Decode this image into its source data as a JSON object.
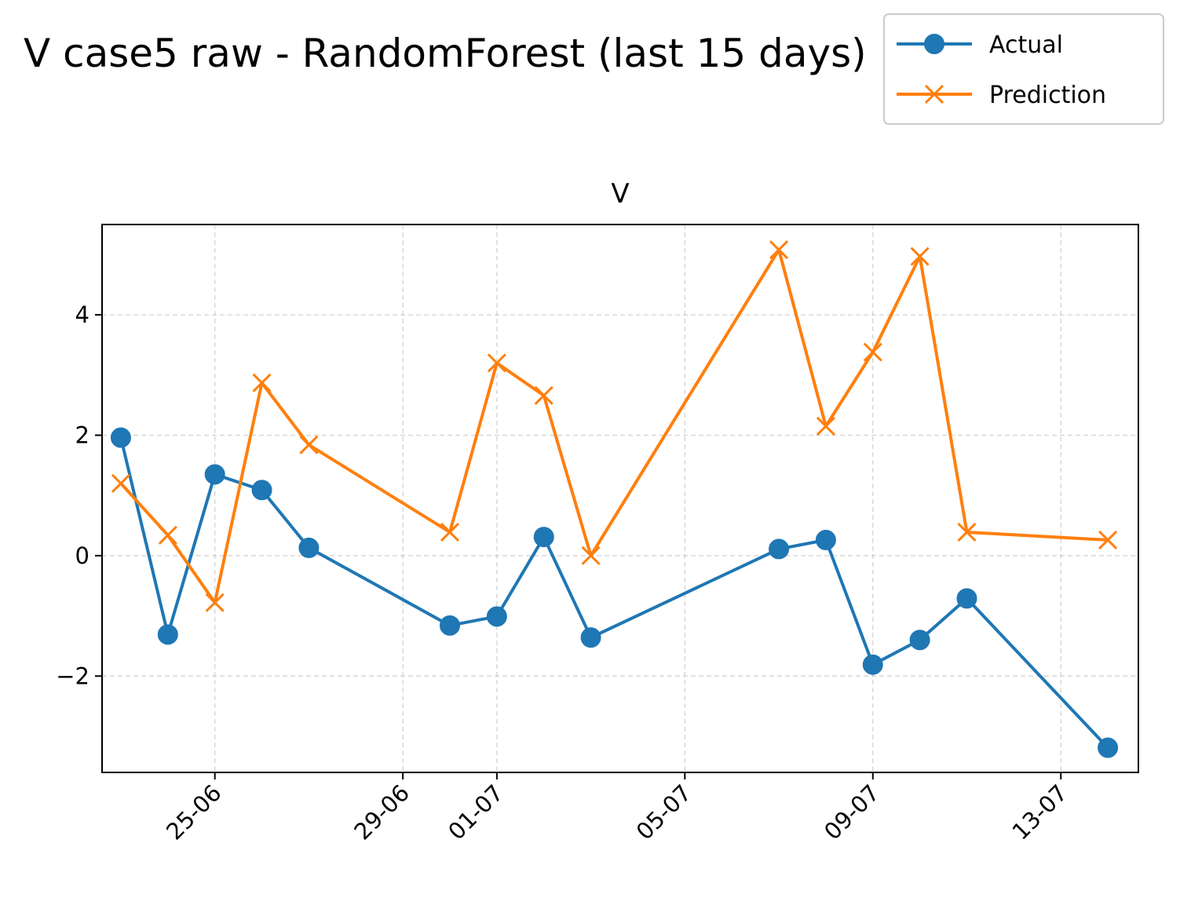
{
  "chart_data": {
    "type": "line",
    "title": "V case5 raw - RandomForest (last 15 days)",
    "subtitle": "V",
    "xlabel": "",
    "ylabel": "",
    "x": [
      "23-06",
      "24-06",
      "25-06",
      "26-06",
      "27-06",
      "30-06",
      "01-07",
      "02-07",
      "03-07",
      "07-07",
      "08-07",
      "09-07",
      "10-07",
      "11-07",
      "14-07"
    ],
    "x_ticks": [
      "25-06",
      "29-06",
      "01-07",
      "05-07",
      "09-07",
      "13-07"
    ],
    "x_range": [
      "22-06",
      "15-07"
    ],
    "y_ticks": [
      -2,
      0,
      2,
      4
    ],
    "ylim": [
      -3.6,
      5.5
    ],
    "grid": true,
    "legend_position": "top-right",
    "series": [
      {
        "name": "Actual",
        "color": "#1f77b4",
        "marker": "circle",
        "values": [
          1.96,
          -1.31,
          1.35,
          1.09,
          0.13,
          -1.16,
          -1.01,
          0.31,
          -1.36,
          0.11,
          0.26,
          -1.81,
          -1.4,
          -0.71,
          -3.19
        ]
      },
      {
        "name": "Prediction",
        "color": "#ff7f0e",
        "marker": "x",
        "values": [
          1.2,
          0.34,
          -0.78,
          2.87,
          1.84,
          0.39,
          3.2,
          2.66,
          0.0,
          5.08,
          2.15,
          3.38,
          4.97,
          0.39,
          0.26
        ]
      }
    ]
  }
}
